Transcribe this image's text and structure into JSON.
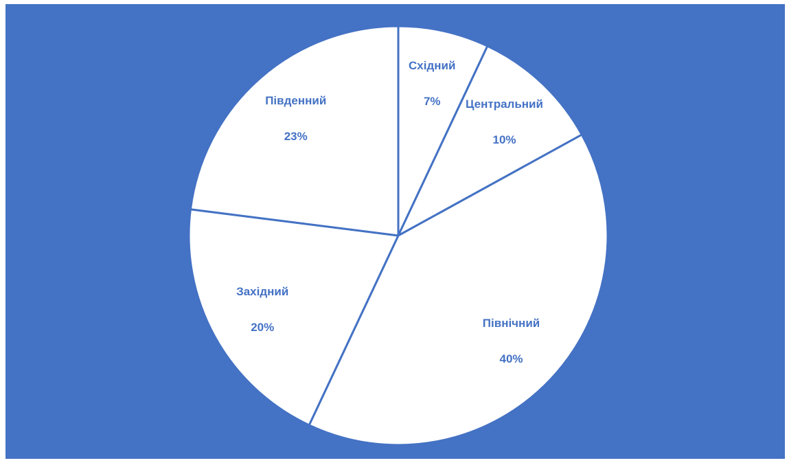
{
  "chart_data": {
    "type": "pie",
    "categories": [
      "Східний",
      "Центральний",
      "Північний",
      "Західний",
      "Південний"
    ],
    "values": [
      7,
      10,
      40,
      20,
      23
    ],
    "value_labels": [
      "7%",
      "10%",
      "40%",
      "20%",
      "23%"
    ],
    "background": "#4472c4",
    "slice_color": "#ffffff",
    "label_color": "#4472c4"
  }
}
